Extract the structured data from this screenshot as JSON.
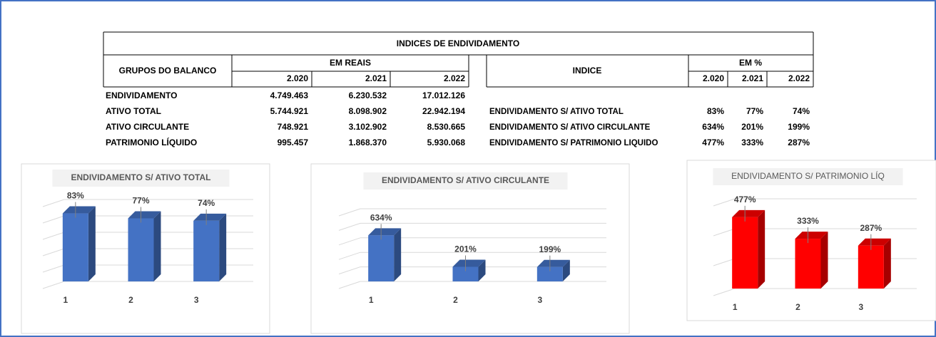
{
  "table": {
    "title": "INDICES DE ENDIVIDAMENTO",
    "left": {
      "group_header": "GRUPOS DO BALANCO",
      "unit_header": "EM REAIS",
      "years": [
        "2.020",
        "2.021",
        "2.022"
      ],
      "rows": [
        [
          "ENDIVIDAMENTO",
          "4.749.463",
          "6.230.532",
          "17.012.126"
        ],
        [
          "ATIVO TOTAL",
          "5.744.921",
          "8.098.902",
          "22.942.194"
        ],
        [
          "ATIVO CIRCULANTE",
          "748.921",
          "3.102.902",
          "8.530.665"
        ],
        [
          "PATRIMONIO LÍQUIDO",
          "995.457",
          "1.868.370",
          "5.930.068"
        ]
      ]
    },
    "right": {
      "index_header": "INDICE",
      "unit_header": "EM %",
      "years": [
        "2.020",
        "2.021",
        "2.022"
      ],
      "rows": [
        [
          "ENDIVIDAMENTO S/ ATIVO TOTAL",
          "83%",
          "77%",
          "74%"
        ],
        [
          "ENDIVIDAMENTO S/ ATIVO CIRCULANTE",
          "634%",
          "201%",
          "199%"
        ],
        [
          "ENDIVIDAMENTO S/ PATRIMONIO LIQUIDO",
          "477%",
          "333%",
          "287%"
        ]
      ]
    }
  },
  "chart_data": [
    {
      "type": "bar",
      "title": "ENDIVIDAMENTO S/ ATIVO TOTAL",
      "categories": [
        "1",
        "2",
        "3"
      ],
      "values": [
        83,
        77,
        74
      ],
      "value_labels": [
        "83%",
        "77%",
        "74%"
      ],
      "color": "#4472c4",
      "ylim": [
        0,
        100
      ],
      "yticks": [
        0,
        20,
        40,
        60,
        80,
        100
      ],
      "grid": true
    },
    {
      "type": "bar",
      "title": "ENDIVIDAMENTO S/ ATIVO CIRCULANTE",
      "categories": [
        "1",
        "2",
        "3"
      ],
      "values": [
        634,
        201,
        199
      ],
      "value_labels": [
        "634%",
        "201%",
        "199%"
      ],
      "color": "#4472c4",
      "ylim": [
        0,
        1000
      ],
      "yticks": [
        0,
        200,
        400,
        600,
        800,
        1000
      ],
      "grid": true
    },
    {
      "type": "bar",
      "title": "ENDIVIDAMENTO S/ PATRIMONIO LÍQ",
      "categories": [
        "1",
        "2",
        "3"
      ],
      "values": [
        477,
        333,
        287
      ],
      "value_labels": [
        "477%",
        "333%",
        "287%"
      ],
      "color": "#ff0000",
      "ylim": [
        0,
        600
      ],
      "yticks": [
        0,
        200,
        400,
        600
      ],
      "grid": true
    }
  ]
}
